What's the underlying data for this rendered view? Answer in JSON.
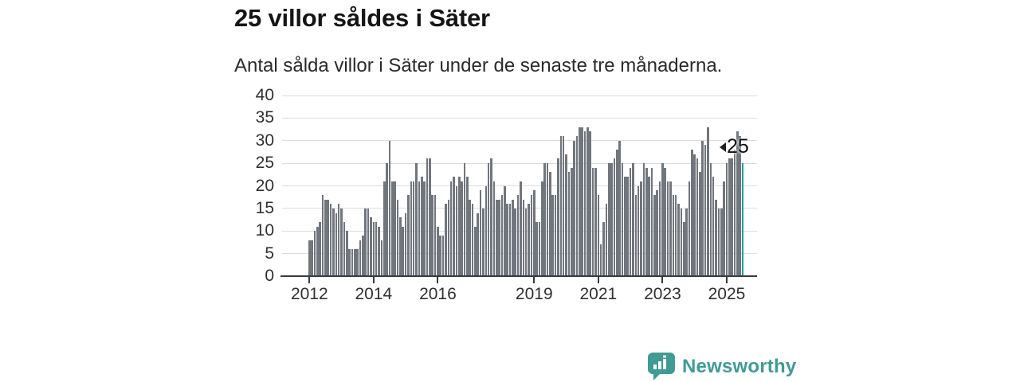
{
  "header": {
    "title": "25 villor såldes i Säter",
    "subtitle": "Antal sålda villor i Säter under de senaste tre månaderna."
  },
  "chart_data": {
    "type": "bar",
    "title": "25 villor såldes i Säter",
    "subtitle": "Antal sålda villor i Säter under de senaste tre månaderna.",
    "x_start": "2012-01",
    "x_frequency": "monthly-rolling-3-month-count",
    "values": [
      8,
      8,
      10,
      11,
      12,
      18,
      17,
      17,
      16,
      15,
      14,
      16,
      15,
      12,
      10,
      6,
      6,
      6,
      6,
      8,
      9,
      15,
      15,
      13,
      12,
      12,
      11,
      8,
      21,
      25,
      30,
      21,
      21,
      17,
      13,
      11,
      14,
      18,
      21,
      21,
      25,
      21,
      22,
      21,
      26,
      26,
      18,
      18,
      11,
      9,
      9,
      16,
      17,
      21,
      22,
      20,
      22,
      21,
      25,
      22,
      17,
      16,
      11,
      14,
      19,
      15,
      20,
      25,
      26,
      21,
      17,
      17,
      18,
      20,
      16,
      16,
      17,
      15,
      18,
      21,
      17,
      15,
      16,
      18,
      19,
      12,
      12,
      21,
      25,
      25,
      23,
      18,
      18,
      26,
      31,
      31,
      27,
      23,
      24,
      30,
      31,
      33,
      33,
      32,
      33,
      32,
      24,
      24,
      18,
      7,
      12,
      16,
      25,
      25,
      26,
      28,
      30,
      25,
      22,
      22,
      24,
      25,
      18,
      20,
      21,
      25,
      24,
      22,
      24,
      18,
      19,
      21,
      25,
      24,
      21,
      21,
      18,
      18,
      16,
      15,
      12,
      15,
      21,
      28,
      27,
      26,
      23,
      30,
      29,
      33,
      25,
      22,
      17,
      15,
      15,
      21,
      25,
      26,
      26,
      28,
      32,
      31,
      25
    ],
    "ylim": [
      0,
      40
    ],
    "yticks": [
      "0",
      "5",
      "10",
      "15",
      "20",
      "25",
      "30",
      "35",
      "40"
    ],
    "xticks": [
      {
        "label": "2012",
        "month": 0
      },
      {
        "label": "2014",
        "month": 24
      },
      {
        "label": "2016",
        "month": 48
      },
      {
        "label": "2019",
        "month": 84
      },
      {
        "label": "2021",
        "month": 108
      },
      {
        "label": "2023",
        "month": 132
      },
      {
        "label": "2025",
        "month": 156
      }
    ],
    "grid": "horizontal",
    "legend": "none",
    "bar_color": "#71757c",
    "highlight": {
      "index": 162,
      "value": 25,
      "label": "25",
      "color": "#1aa39d"
    }
  },
  "footer": {
    "brand": "Newsworthy",
    "brand_color": "#3f9b94"
  }
}
